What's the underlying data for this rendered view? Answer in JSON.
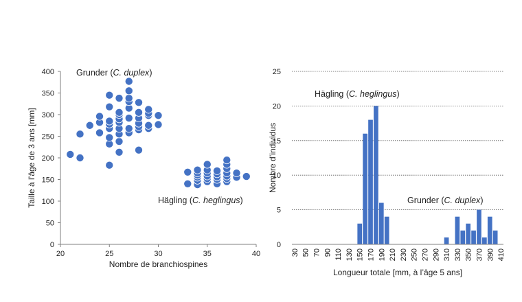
{
  "colors": {
    "marker_fill": "#4472C4",
    "marker_stroke": "#2F5597",
    "bar_fill": "#4472C4",
    "axis": "#7f7f7f",
    "grid": "#595959",
    "text": "#222222"
  },
  "chart_data": [
    {
      "type": "scatter",
      "title": "",
      "xlabel": "Nombre de branchiospines",
      "ylabel": "Taille à l’âge de 3 ans [mm]",
      "xlim": [
        20,
        40
      ],
      "ylim": [
        0,
        400
      ],
      "xticks": [
        20,
        25,
        30,
        35,
        40
      ],
      "yticks": [
        0,
        50,
        100,
        150,
        200,
        250,
        300,
        350,
        400
      ],
      "grid": false,
      "annotations": [
        {
          "name": "grunder",
          "prefix": "Grunder (",
          "italic": "C. duplex",
          "suffix": ")"
        },
        {
          "name": "hagling",
          "prefix": "Hägling (",
          "italic": "C. heglingus",
          "suffix": ")"
        }
      ],
      "series": [
        {
          "name": "Grunder (C. duplex)",
          "points": [
            [
              21,
              208
            ],
            [
              22,
              200
            ],
            [
              22,
              255
            ],
            [
              23,
              275
            ],
            [
              24,
              258
            ],
            [
              24,
              282
            ],
            [
              24,
              296
            ],
            [
              25,
              183
            ],
            [
              25,
              232
            ],
            [
              25,
              247
            ],
            [
              25,
              268
            ],
            [
              25,
              278
            ],
            [
              25,
              285
            ],
            [
              25,
              318
            ],
            [
              25,
              345
            ],
            [
              26,
              213
            ],
            [
              26,
              238
            ],
            [
              26,
              255
            ],
            [
              26,
              268
            ],
            [
              26,
              282
            ],
            [
              26,
              290
            ],
            [
              26,
              300
            ],
            [
              26,
              305
            ],
            [
              26,
              338
            ],
            [
              27,
              258
            ],
            [
              27,
              268
            ],
            [
              27,
              292
            ],
            [
              27,
              315
            ],
            [
              27,
              330
            ],
            [
              27,
              338
            ],
            [
              27,
              355
            ],
            [
              27,
              377
            ],
            [
              28,
              218
            ],
            [
              28,
              265
            ],
            [
              28,
              272
            ],
            [
              28,
              280
            ],
            [
              28,
              292
            ],
            [
              28,
              305
            ],
            [
              28,
              328
            ],
            [
              29,
              268
            ],
            [
              29,
              275
            ],
            [
              29,
              298
            ],
            [
              29,
              303
            ],
            [
              29,
              312
            ],
            [
              30,
              277
            ],
            [
              30,
              298
            ]
          ]
        },
        {
          "name": "Hägling (C. heglingus)",
          "points": [
            [
              33,
              140
            ],
            [
              33,
              167
            ],
            [
              34,
              138
            ],
            [
              34,
              148
            ],
            [
              34,
              155
            ],
            [
              34,
              160
            ],
            [
              34,
              165
            ],
            [
              34,
              172
            ],
            [
              35,
              145
            ],
            [
              35,
              152
            ],
            [
              35,
              158
            ],
            [
              35,
              165
            ],
            [
              35,
              172
            ],
            [
              35,
              185
            ],
            [
              36,
              140
            ],
            [
              36,
              150
            ],
            [
              36,
              156
            ],
            [
              36,
              163
            ],
            [
              36,
              170
            ],
            [
              37,
              145
            ],
            [
              37,
              152
            ],
            [
              37,
              158
            ],
            [
              37,
              165
            ],
            [
              37,
              175
            ],
            [
              37,
              185
            ],
            [
              37,
              195
            ],
            [
              38,
              155
            ],
            [
              38,
              165
            ],
            [
              39,
              157
            ]
          ]
        }
      ]
    },
    {
      "type": "bar",
      "title": "",
      "xlabel": "Longueur totale [mm, à l’âge 5 ans]",
      "ylabel": "Nombre d’individus",
      "ylim": [
        0,
        25
      ],
      "yticks": [
        0,
        5,
        10,
        15,
        20,
        25
      ],
      "grid": true,
      "categories": [
        30,
        40,
        50,
        60,
        70,
        80,
        90,
        100,
        110,
        120,
        130,
        140,
        150,
        160,
        170,
        180,
        190,
        200,
        210,
        220,
        230,
        240,
        250,
        260,
        270,
        280,
        290,
        300,
        310,
        320,
        330,
        340,
        350,
        360,
        370,
        380,
        390,
        400,
        410
      ],
      "tick_labels": [
        "30",
        "50",
        "70",
        "90",
        "110",
        "130",
        "150",
        "170",
        "190",
        "210",
        "230",
        "250",
        "270",
        "290",
        "310",
        "330",
        "350",
        "370",
        "390",
        "410"
      ],
      "values": [
        0,
        0,
        0,
        0,
        0,
        0,
        0,
        0,
        0,
        0,
        0,
        0,
        3,
        16,
        18,
        20,
        6,
        4,
        0,
        0,
        0,
        0,
        0,
        0,
        0,
        0,
        0,
        0,
        1,
        0,
        4,
        2,
        3,
        2,
        5,
        1,
        4,
        2,
        0
      ],
      "annotations": [
        {
          "name": "hagling",
          "prefix": "Hägling (",
          "italic": "C. heglingus",
          "suffix": ")"
        },
        {
          "name": "grunder",
          "prefix": "Grunder (",
          "italic": "C. duplex",
          "suffix": ")"
        }
      ]
    }
  ]
}
